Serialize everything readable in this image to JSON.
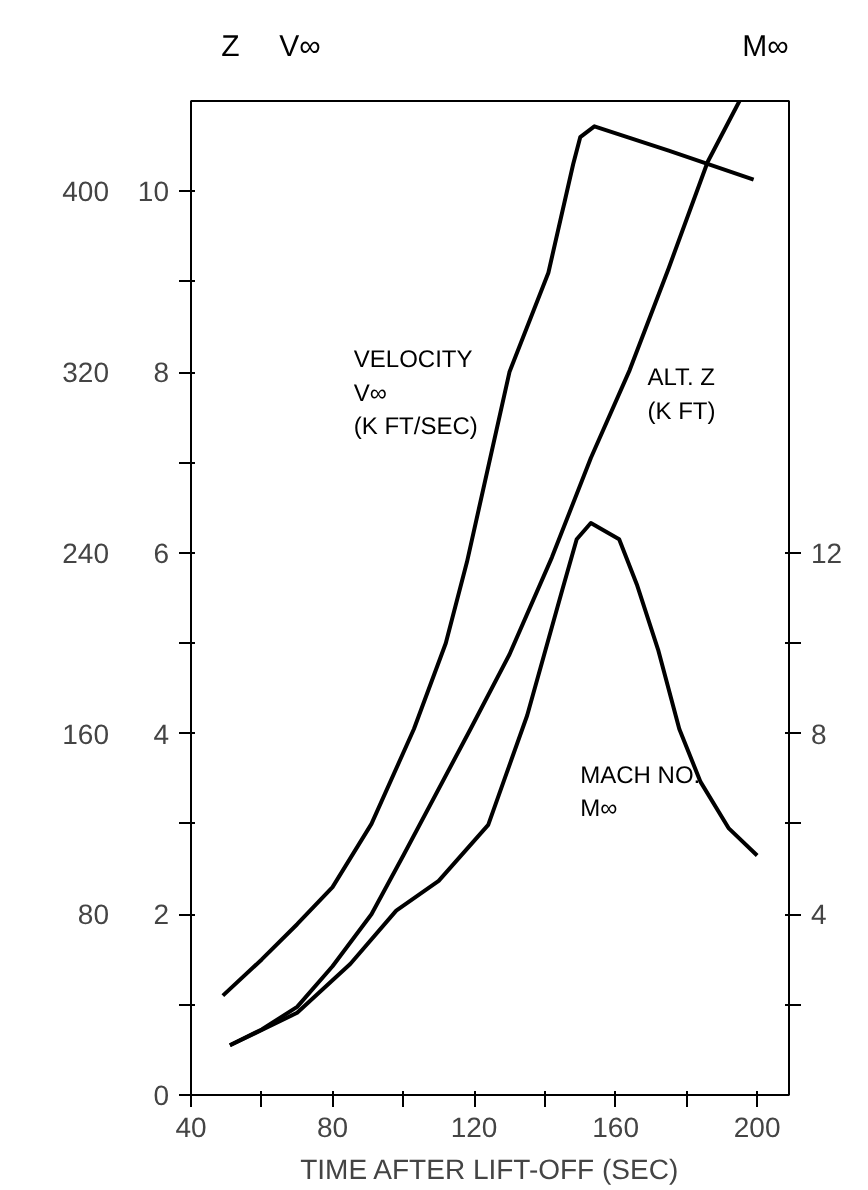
{
  "chart_data": {
    "type": "line",
    "xlabel": "TIME AFTER LIFT-OFF (SEC)",
    "ylabel": "V∞",
    "y3label": "Z",
    "y2label": "M∞",
    "xlim": [
      40,
      209
    ],
    "ylim": [
      0,
      11.0
    ],
    "y2lim": [
      0,
      22.0
    ],
    "y3lim": [
      0,
      440
    ],
    "xticks": [
      40,
      {
        "value": 60,
        "label": null
      },
      80,
      {
        "value": 100,
        "label": null
      },
      120,
      {
        "value": 140,
        "label": null
      },
      160,
      {
        "value": 180,
        "label": null
      },
      200
    ],
    "yticks": [
      0,
      {
        "value": 1,
        "label": null
      },
      2,
      {
        "value": 3,
        "label": null
      },
      4,
      {
        "value": 5,
        "label": null
      },
      6,
      {
        "value": 7,
        "label": null
      },
      8,
      {
        "value": 9,
        "label": null
      },
      10
    ],
    "y2ticks": [
      {
        "value": 2,
        "label": null
      },
      4,
      {
        "value": 6,
        "label": null
      },
      8,
      {
        "value": 10,
        "label": null
      },
      12
    ],
    "y3ticks": [
      80,
      160,
      240,
      320,
      400
    ],
    "series": [
      {
        "name": "VELOCITY\nV∞\n(K FT/SEC)",
        "color": "#000000",
        "x": [
          49,
          60,
          70,
          80,
          91,
          103,
          112,
          118,
          130,
          141,
          148,
          150,
          154,
          175,
          199
        ],
        "values": [
          1.1,
          1.5,
          1.89,
          2.3,
          3.0,
          4.05,
          5.0,
          5.9,
          8.0,
          9.1,
          10.3,
          10.6,
          10.72,
          10.45,
          10.13
        ]
      },
      {
        "name": "ALT. Z\n(K FT)",
        "color": "#000000",
        "axis": "y3",
        "x": [
          51,
          60,
          70,
          80,
          91,
          100,
          119,
          130,
          142,
          153,
          164,
          175,
          186,
          195
        ],
        "values": [
          22,
          29,
          39,
          57,
          80,
          106,
          162,
          195,
          238,
          282,
          321,
          366,
          413,
          440
        ]
      },
      {
        "name": "MACH NO.\nM∞",
        "color": "#000000",
        "axis": "y2",
        "x": [
          51,
          60,
          70,
          85,
          98,
          110,
          124,
          135,
          145,
          149,
          153,
          161,
          166,
          172,
          178,
          184,
          192,
          200
        ],
        "values": [
          1.1,
          1.44,
          1.82,
          2.9,
          4.08,
          4.74,
          5.98,
          8.4,
          11.2,
          12.3,
          12.66,
          12.3,
          11.3,
          9.86,
          8.1,
          6.93,
          5.9,
          5.3
        ]
      }
    ]
  }
}
